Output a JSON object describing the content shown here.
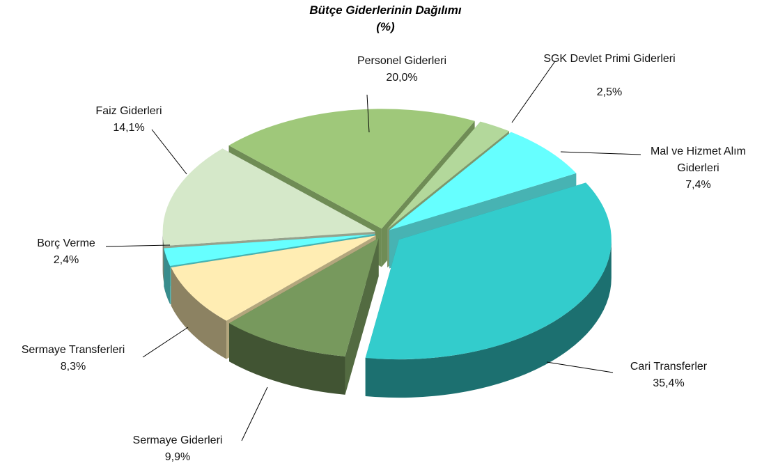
{
  "chart_data": {
    "type": "pie3d",
    "title": "Bütçe Giderlerinin Dağılımı",
    "subtitle": "(%)",
    "categories": [
      "Personel Giderleri",
      "SGK Devlet Primi Giderleri",
      "Mal ve Hizmet Alım Giderleri",
      "Cari Transferler",
      "Sermaye Giderleri",
      "Sermaye Transferleri",
      "Borç Verme",
      "Faiz Giderleri"
    ],
    "values": [
      20.0,
      2.5,
      7.4,
      35.4,
      9.9,
      8.3,
      2.4,
      14.1
    ],
    "value_labels": [
      "20,0%",
      "2,5%",
      "7,4%",
      "35,4%",
      "9,9%",
      "8,3%",
      "2,4%",
      "14,1%"
    ],
    "colors": [
      "#9fc87a",
      "#b3d89b",
      "#66ffff",
      "#33cccc",
      "#77995d",
      "#ffedb3",
      "#66ffff",
      "#d5e8c9"
    ]
  }
}
